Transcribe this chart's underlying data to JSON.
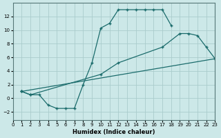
{
  "xlabel": "Humidex (Indice chaleur)",
  "bg_color": "#cce8e8",
  "grid_color": "#aacccc",
  "line_color": "#1a6b6b",
  "xlim": [
    0,
    23
  ],
  "ylim": [
    -3.2,
    14.0
  ],
  "xticks": [
    0,
    1,
    2,
    3,
    4,
    5,
    6,
    7,
    8,
    9,
    10,
    11,
    12,
    13,
    14,
    15,
    16,
    17,
    18,
    19,
    20,
    21,
    22,
    23
  ],
  "yticks": [
    -2,
    0,
    2,
    4,
    6,
    8,
    10,
    12
  ],
  "line1": {
    "x": [
      1,
      2,
      3,
      4,
      5,
      6,
      7,
      8,
      9,
      10,
      11,
      12,
      13,
      14,
      15,
      16,
      17,
      18
    ],
    "y": [
      1,
      0.5,
      0.5,
      -1,
      -1.5,
      -1.5,
      -1.5,
      2,
      5.2,
      10.3,
      11.0,
      13.0,
      13.0,
      13.0,
      13.0,
      13.0,
      13.0,
      10.7
    ]
  },
  "line2": {
    "x": [
      1,
      2,
      10,
      12,
      17,
      19,
      20,
      21,
      22,
      23
    ],
    "y": [
      1,
      0.5,
      3.5,
      5.2,
      7.5,
      9.5,
      9.5,
      9.2,
      7.5,
      5.8
    ]
  },
  "line3": {
    "x": [
      1,
      23
    ],
    "y": [
      1,
      5.8
    ]
  }
}
